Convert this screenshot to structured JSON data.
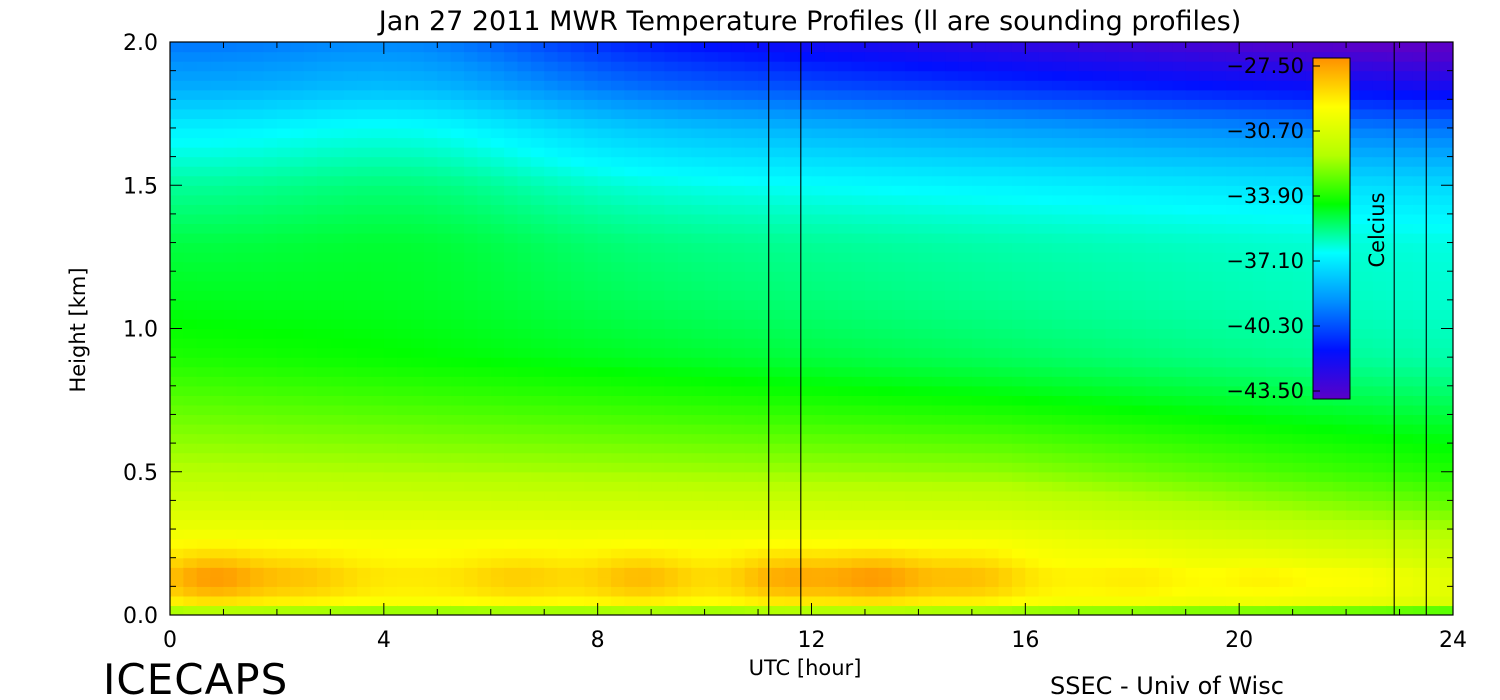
{
  "chart_data": {
    "type": "heatmap",
    "title": "Jan 27 2011 MWR Temperature Profiles (ll are sounding profiles)",
    "xlabel": "UTC [hour]",
    "ylabel": "Height [km]",
    "xlim": [
      0,
      24
    ],
    "ylim": [
      0,
      2.0
    ],
    "x_ticks": [
      "0",
      "4",
      "8",
      "12",
      "16",
      "20",
      "24"
    ],
    "y_ticks": [
      "0.0",
      "0.5",
      "1.0",
      "1.5",
      "2.0"
    ],
    "colorbar": {
      "label": "Celcius",
      "ticks": [
        "−27.50",
        "−30.70",
        "−33.90",
        "−37.10",
        "−40.30",
        "−43.50"
      ],
      "range": [
        -43.5,
        -27.5
      ],
      "colormap": [
        "#5a00c8",
        "#0010ff",
        "#0090ff",
        "#00ffff",
        "#00ff00",
        "#b4ff00",
        "#ffff00",
        "#ff9000"
      ]
    },
    "sounding_lines_hours": [
      11.2,
      11.8,
      22.9,
      23.5
    ],
    "times_hours": [
      0,
      0.8,
      1.6,
      2.4,
      3.2,
      4.0,
      4.8,
      5.6,
      6.4,
      7.2,
      8.0,
      8.8,
      9.6,
      10.4,
      11.2,
      12.0,
      12.8,
      13.6,
      14.4,
      15.2,
      16.0,
      16.8,
      17.6,
      18.4,
      19.2,
      20.0,
      20.8,
      21.6,
      22.4,
      23.2,
      24.0
    ],
    "heights_km": [
      0.0,
      0.02,
      0.05,
      0.1,
      0.15,
      0.2,
      0.3,
      0.4,
      0.5,
      0.7,
      0.9,
      1.1,
      1.3,
      1.5,
      1.7,
      1.85,
      2.0
    ],
    "temperature_profile_first_time_C": [
      -35.5,
      -31.5,
      -29.5,
      -28.5,
      -28.5,
      -29.2,
      -30.3,
      -31.2,
      -32.0,
      -33.0,
      -34.0,
      -34.6,
      -35.0,
      -35.8,
      -37.0,
      -38.5,
      -39.5
    ],
    "annotations": {
      "left_footer": "ICECAPS",
      "right_footer": "SSEC - Univ of Wisc"
    }
  }
}
